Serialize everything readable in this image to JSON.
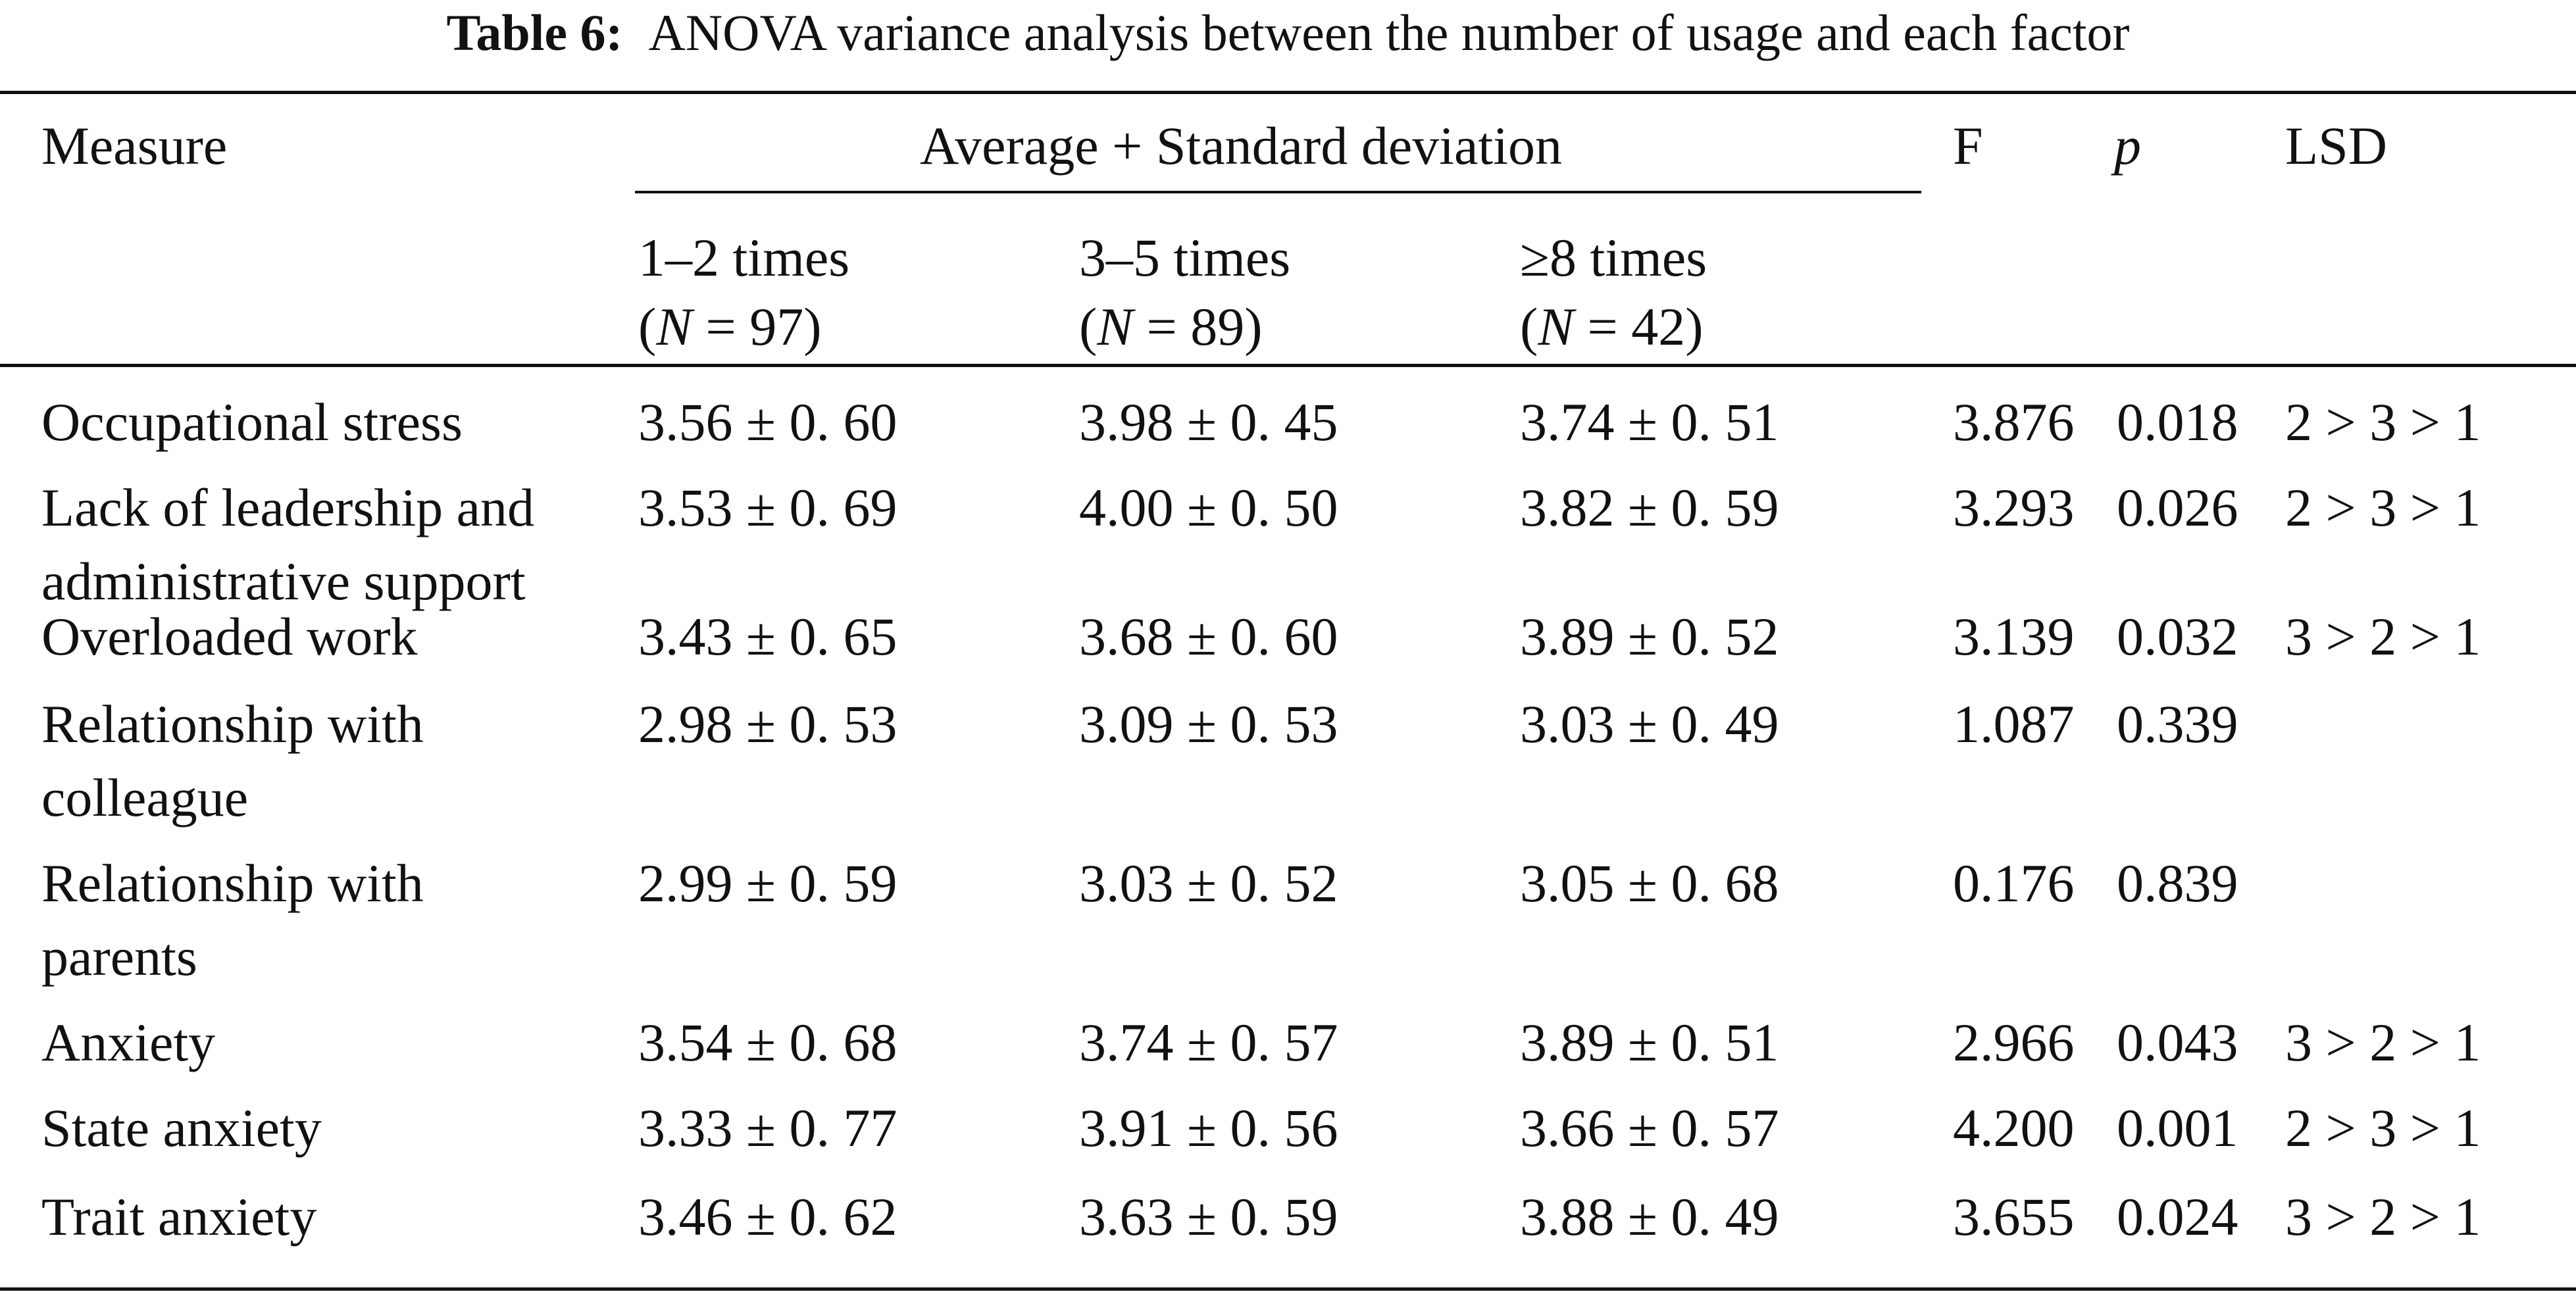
{
  "caption": {
    "label": "Table 6:",
    "text": "ANOVA variance analysis between the number of usage and each factor"
  },
  "header": {
    "measure": "Measure",
    "avg_sd": "Average + Standard deviation",
    "f": "F",
    "p": "p",
    "lsd": "LSD",
    "groups": [
      {
        "times": "1–2 times",
        "n_prefix": "(",
        "n_var": "N",
        "n_suffix": " = 97)"
      },
      {
        "times": "3–5 times",
        "n_prefix": "(",
        "n_var": "N",
        "n_suffix": " = 89)"
      },
      {
        "times": "≥8 times",
        "n_prefix": "(",
        "n_var": "N",
        "n_suffix": " = 42)"
      }
    ]
  },
  "rows": [
    {
      "measure_l1": "Occupational stress",
      "measure_l2": "",
      "g1": "3.56 ± 0. 60",
      "g2": "3.98 ± 0. 45",
      "g3": "3.74 ± 0. 51",
      "f": "3.876",
      "p": "0.018",
      "lsd": "2 > 3 > 1"
    },
    {
      "measure_l1": "Lack of leadership and",
      "measure_l2": "administrative support",
      "g1": "3.53 ± 0. 69",
      "g2": "4.00 ± 0. 50",
      "g3": "3.82 ± 0. 59",
      "f": "3.293",
      "p": "0.026",
      "lsd": "2 > 3 > 1"
    },
    {
      "measure_l1": "Overloaded work",
      "measure_l2": "",
      "g1": "3.43 ± 0. 65",
      "g2": "3.68 ± 0. 60",
      "g3": "3.89 ± 0. 52",
      "f": "3.139",
      "p": "0.032",
      "lsd": "3 > 2 > 1"
    },
    {
      "measure_l1": "Relationship with",
      "measure_l2": "colleague",
      "g1": "2.98 ± 0. 53",
      "g2": "3.09 ± 0. 53",
      "g3": "3.03 ± 0. 49",
      "f": "1.087",
      "p": "0.339",
      "lsd": ""
    },
    {
      "measure_l1": "Relationship with",
      "measure_l2": "parents",
      "g1": "2.99 ± 0. 59",
      "g2": "3.03 ± 0. 52",
      "g3": "3.05 ± 0. 68",
      "f": "0.176",
      "p": "0.839",
      "lsd": ""
    },
    {
      "measure_l1": "Anxiety",
      "measure_l2": "",
      "g1": "3.54 ± 0. 68",
      "g2": "3.74 ± 0. 57",
      "g3": "3.89 ± 0. 51",
      "f": "2.966",
      "p": "0.043",
      "lsd": "3 > 2 > 1"
    },
    {
      "measure_l1": "State anxiety",
      "measure_l2": "",
      "g1": "3.33 ± 0. 77",
      "g2": "3.91 ± 0. 56",
      "g3": "3.66 ± 0. 57",
      "f": "4.200",
      "p": "0.001",
      "lsd": "2 > 3 > 1"
    },
    {
      "measure_l1": "Trait anxiety",
      "measure_l2": "",
      "g1": "3.46 ± 0. 62",
      "g2": "3.63 ± 0. 59",
      "g3": "3.88 ± 0. 49",
      "f": "3.655",
      "p": "0.024",
      "lsd": "3 > 2 > 1"
    }
  ]
}
